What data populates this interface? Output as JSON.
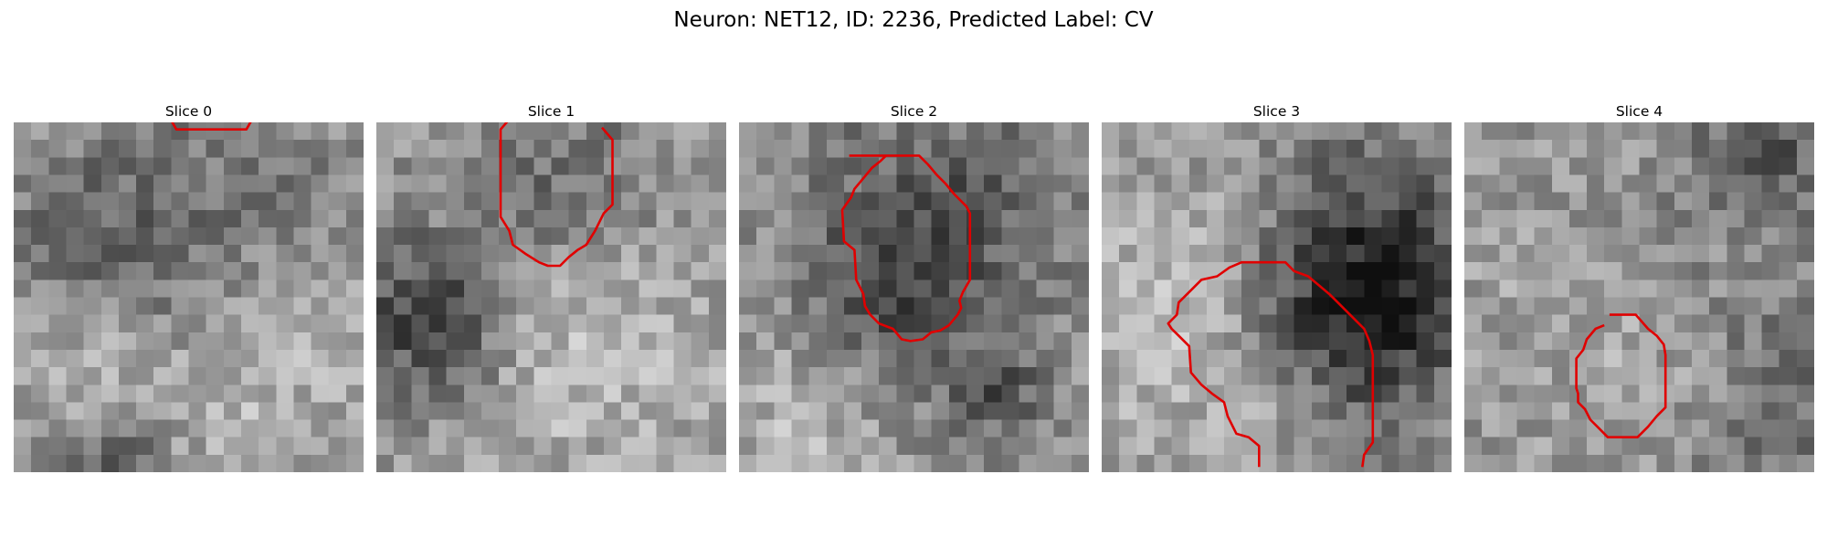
{
  "figure": {
    "title": "Neuron: NET12, ID: 2236, Predicted Label: CV",
    "panels": [
      {
        "title": "Slice 0",
        "image": "grayscale-microscopy-noise",
        "contour": {
          "color": "#e00000",
          "points": [
            [
              8.9,
              -0.3
            ],
            [
              9.3,
              0.4
            ],
            [
              13.3,
              0.4
            ],
            [
              13.7,
              -0.3
            ]
          ]
        }
      },
      {
        "title": "Slice 1",
        "image": "grayscale-microscopy-noise",
        "contour": {
          "color": "#e00000",
          "points": [
            [
              7.7,
              -0.3
            ],
            [
              7.1,
              0.4
            ],
            [
              7.1,
              5.4
            ],
            [
              7.6,
              6.2
            ],
            [
              7.8,
              7.0
            ],
            [
              8.5,
              7.5
            ],
            [
              9.3,
              8.0
            ],
            [
              9.8,
              8.2
            ],
            [
              10.5,
              8.2
            ],
            [
              11.0,
              7.7
            ],
            [
              11.5,
              7.3
            ],
            [
              12.0,
              7.0
            ],
            [
              12.5,
              6.2
            ],
            [
              13.0,
              5.2
            ],
            [
              13.5,
              4.7
            ],
            [
              13.5,
              1.0
            ],
            [
              12.9,
              0.3
            ]
          ]
        }
      },
      {
        "title": "Slice 2",
        "image": "grayscale-microscopy-noise",
        "contour": {
          "color": "#e00000",
          "points": [
            [
              6.3,
              1.9
            ],
            [
              10.3,
              1.9
            ],
            [
              10.8,
              2.4
            ],
            [
              11.3,
              3.0
            ],
            [
              11.8,
              3.5
            ],
            [
              12.3,
              4.1
            ],
            [
              13.0,
              4.8
            ],
            [
              13.2,
              5.2
            ],
            [
              13.2,
              9.0
            ],
            [
              12.8,
              9.7
            ],
            [
              12.6,
              10.2
            ],
            [
              12.7,
              10.6
            ],
            [
              12.5,
              11.0
            ],
            [
              12.0,
              11.6
            ],
            [
              11.5,
              11.9
            ],
            [
              11.0,
              12.0
            ],
            [
              10.5,
              12.4
            ],
            [
              9.8,
              12.5
            ],
            [
              9.3,
              12.4
            ],
            [
              8.8,
              11.8
            ],
            [
              8.0,
              11.5
            ],
            [
              7.5,
              11.0
            ],
            [
              7.2,
              10.5
            ],
            [
              7.1,
              9.8
            ],
            [
              6.7,
              9.0
            ],
            [
              6.6,
              7.3
            ],
            [
              6.0,
              6.8
            ],
            [
              5.9,
              5.0
            ],
            [
              6.4,
              4.3
            ],
            [
              6.6,
              3.8
            ],
            [
              7.1,
              3.2
            ],
            [
              7.6,
              2.6
            ],
            [
              8.1,
              2.2
            ],
            [
              8.4,
              1.9
            ]
          ]
        }
      },
      {
        "title": "Slice 3",
        "image": "grayscale-microscopy-noise",
        "contour": {
          "color": "#e00000",
          "points": [
            [
              9.0,
              19.7
            ],
            [
              9.0,
              18.5
            ],
            [
              8.4,
              18.0
            ],
            [
              7.7,
              17.8
            ],
            [
              7.2,
              16.8
            ],
            [
              7.0,
              16.0
            ],
            [
              6.3,
              15.5
            ],
            [
              5.7,
              15.0
            ],
            [
              5.1,
              14.3
            ],
            [
              5.0,
              12.8
            ],
            [
              4.4,
              12.2
            ],
            [
              4.0,
              11.8
            ],
            [
              3.8,
              11.5
            ],
            [
              4.3,
              11.0
            ],
            [
              4.4,
              10.3
            ],
            [
              5.2,
              9.5
            ],
            [
              5.7,
              9.0
            ],
            [
              6.6,
              8.8
            ],
            [
              7.3,
              8.3
            ],
            [
              8.0,
              8.0
            ],
            [
              9.0,
              8.0
            ],
            [
              10.5,
              8.0
            ],
            [
              11.0,
              8.5
            ],
            [
              11.8,
              8.8
            ],
            [
              12.4,
              9.3
            ],
            [
              13.0,
              9.8
            ],
            [
              13.5,
              10.3
            ],
            [
              14.0,
              10.8
            ],
            [
              14.5,
              11.3
            ],
            [
              15.0,
              11.8
            ],
            [
              15.3,
              12.5
            ],
            [
              15.5,
              13.3
            ],
            [
              15.5,
              18.3
            ],
            [
              15.0,
              19.0
            ],
            [
              14.9,
              19.7
            ]
          ]
        }
      },
      {
        "title": "Slice 4",
        "image": "grayscale-microscopy-noise",
        "contour": {
          "color": "#e00000",
          "points": [
            [
              8.3,
              11.0
            ],
            [
              9.8,
              11.0
            ],
            [
              10.5,
              11.8
            ],
            [
              11.0,
              12.2
            ],
            [
              11.4,
              12.7
            ],
            [
              11.5,
              13.3
            ],
            [
              11.5,
              16.3
            ],
            [
              11.0,
              16.8
            ],
            [
              10.5,
              17.4
            ],
            [
              9.9,
              18.0
            ],
            [
              8.2,
              18.0
            ],
            [
              7.7,
              17.5
            ],
            [
              7.2,
              17.0
            ],
            [
              6.9,
              16.4
            ],
            [
              6.5,
              16.0
            ],
            [
              6.5,
              15.5
            ],
            [
              6.4,
              15.2
            ],
            [
              6.4,
              13.5
            ],
            [
              6.8,
              13.0
            ],
            [
              7.0,
              12.4
            ],
            [
              7.5,
              11.8
            ],
            [
              8.0,
              11.6
            ]
          ]
        }
      }
    ]
  }
}
